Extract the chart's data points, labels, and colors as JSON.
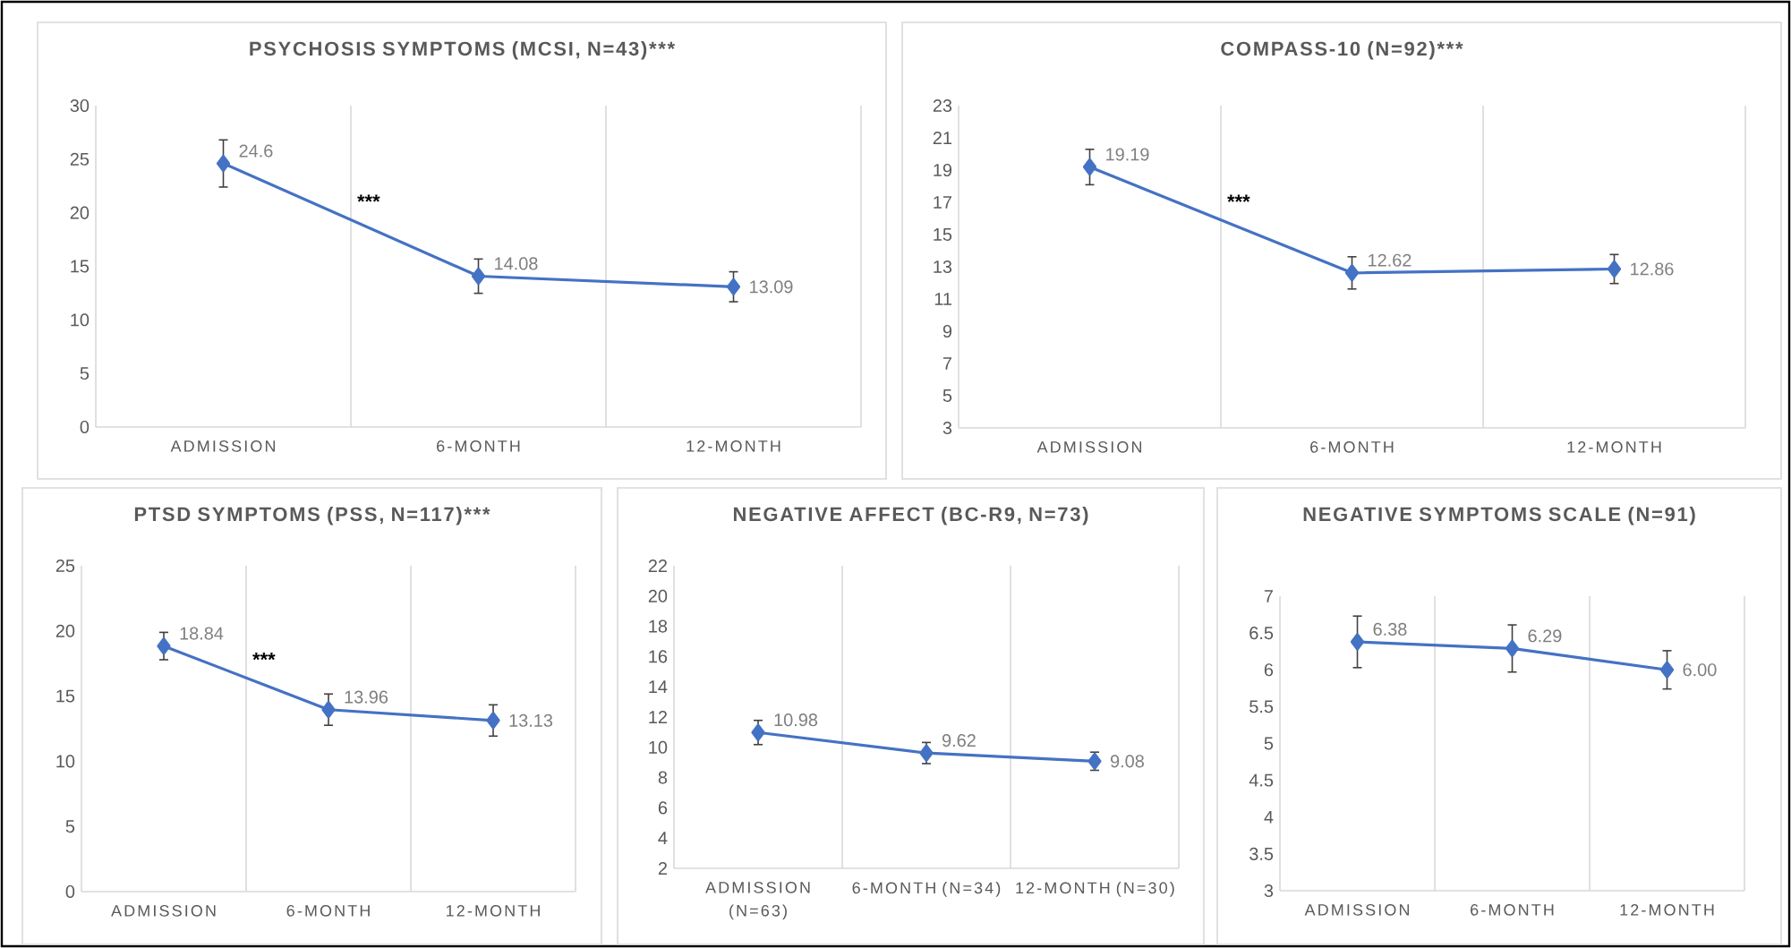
{
  "chart_data": [
    {
      "type": "line",
      "title": "PSYCHOSIS SYMPTOMS (MCSI, N=43)***",
      "categories": [
        "ADMISSION",
        "6-MONTH",
        "12-MONTH"
      ],
      "values": [
        24.6,
        14.08,
        13.09
      ],
      "value_labels": [
        "24.6",
        "14.08",
        "13.09"
      ],
      "errors": [
        2.2,
        1.6,
        1.4
      ],
      "color": "#4472c4",
      "marker": "diamond",
      "ylim": [
        0,
        30
      ],
      "yticks": [
        0,
        5,
        10,
        15,
        20,
        25,
        30
      ],
      "grid": "x",
      "annotations": [
        "***"
      ]
    },
    {
      "type": "line",
      "title": "COMPASS-10 (N=92)***",
      "categories": [
        "ADMISSION",
        "6-MONTH",
        "12-MONTH"
      ],
      "values": [
        19.19,
        12.62,
        12.86
      ],
      "value_labels": [
        "19.19",
        "12.62",
        "12.86"
      ],
      "errors": [
        1.1,
        1.0,
        0.9
      ],
      "color": "#4472c4",
      "marker": "diamond",
      "ylim": [
        3,
        23
      ],
      "yticks": [
        3,
        5,
        7,
        9,
        11,
        13,
        15,
        17,
        19,
        21,
        23
      ],
      "grid": "x",
      "annotations": [
        "***"
      ]
    },
    {
      "type": "line",
      "title": "PTSD SYMPTOMS (PSS, N=117)***",
      "categories": [
        "ADMISSION",
        "6-MONTH",
        "12-MONTH"
      ],
      "values": [
        18.84,
        13.96,
        13.13
      ],
      "value_labels": [
        "18.84",
        "13.96",
        "13.13"
      ],
      "errors": [
        1.05,
        1.2,
        1.2
      ],
      "color": "#4472c4",
      "marker": "diamond",
      "ylim": [
        0,
        25
      ],
      "yticks": [
        0,
        5,
        10,
        15,
        20,
        25
      ],
      "grid": "x",
      "annotations": [
        "***"
      ]
    },
    {
      "type": "line",
      "title": "NEGATIVE AFFECT (BC-R9, N=73)",
      "categories": [
        "ADMISSION (N=63)",
        "6-MONTH (N=34)",
        "12-MONTH (N=30)"
      ],
      "values": [
        10.98,
        9.62,
        9.08
      ],
      "value_labels": [
        "10.98",
        "9.62",
        "9.08"
      ],
      "errors": [
        0.8,
        0.7,
        0.6
      ],
      "color": "#4472c4",
      "marker": "diamond",
      "ylim": [
        2,
        22
      ],
      "yticks": [
        2,
        4,
        6,
        8,
        10,
        12,
        14,
        16,
        18,
        20,
        22
      ],
      "grid": "x"
    },
    {
      "type": "line",
      "title": "NEGATIVE SYMPTOMS SCALE (N=91)",
      "categories": [
        "ADMISSION",
        "6-MONTH",
        "12-MONTH"
      ],
      "values": [
        6.38,
        6.29,
        6.0
      ],
      "value_labels": [
        "6.38",
        "6.29",
        "6.00"
      ],
      "errors": [
        0.35,
        0.32,
        0.26
      ],
      "color": "#4472c4",
      "marker": "diamond",
      "ylim": [
        3,
        7
      ],
      "yticks": [
        3,
        3.5,
        4,
        4.5,
        5,
        5.5,
        6,
        6.5,
        7
      ],
      "grid": "x"
    }
  ]
}
